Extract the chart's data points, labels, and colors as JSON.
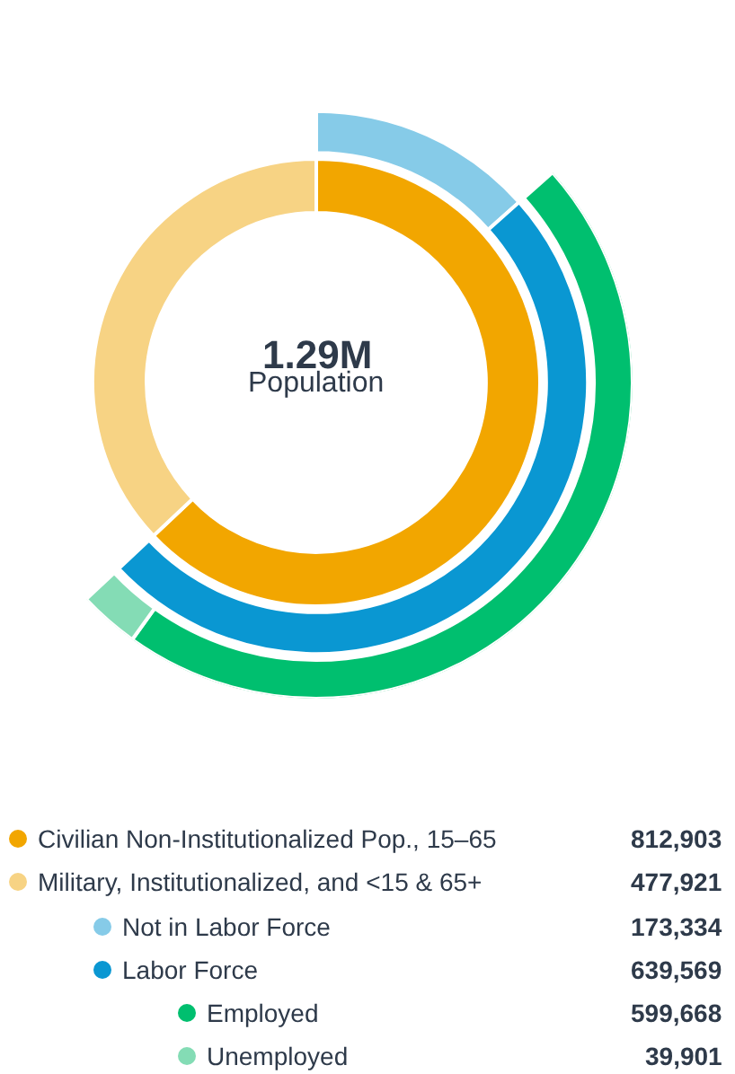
{
  "chart_data": {
    "type": "donut",
    "categories": [
      "Civilian Non-Institutionalized Pop., 15–65",
      "Military, Institutionalized, and <15 & 65+",
      "Not in Labor Force",
      "Labor Force",
      "Employed",
      "Unemployed"
    ],
    "colors": [
      "#f2a600",
      "#f7d384",
      "#86cbe8",
      "#0a97d2",
      "#00bf6f",
      "#84dcb5"
    ],
    "series": [
      {
        "values": [
          812903,
          477921,
          null,
          null,
          null,
          null
        ],
        "value_labels": [
          "812,903",
          "477,921",
          null,
          null,
          null,
          null
        ]
      },
      {
        "values": [
          null,
          null,
          173334,
          639569,
          null,
          null
        ],
        "value_labels": [
          null,
          null,
          "173,334",
          "639,569",
          null,
          null
        ]
      },
      {
        "values": [
          null,
          null,
          null,
          null,
          599668,
          39901
        ],
        "value_labels": [
          null,
          null,
          null,
          null,
          "599,668",
          "39,901"
        ]
      }
    ],
    "legend": "bottom",
    "annotations": [
      "1.29M",
      "Population"
    ]
  }
}
